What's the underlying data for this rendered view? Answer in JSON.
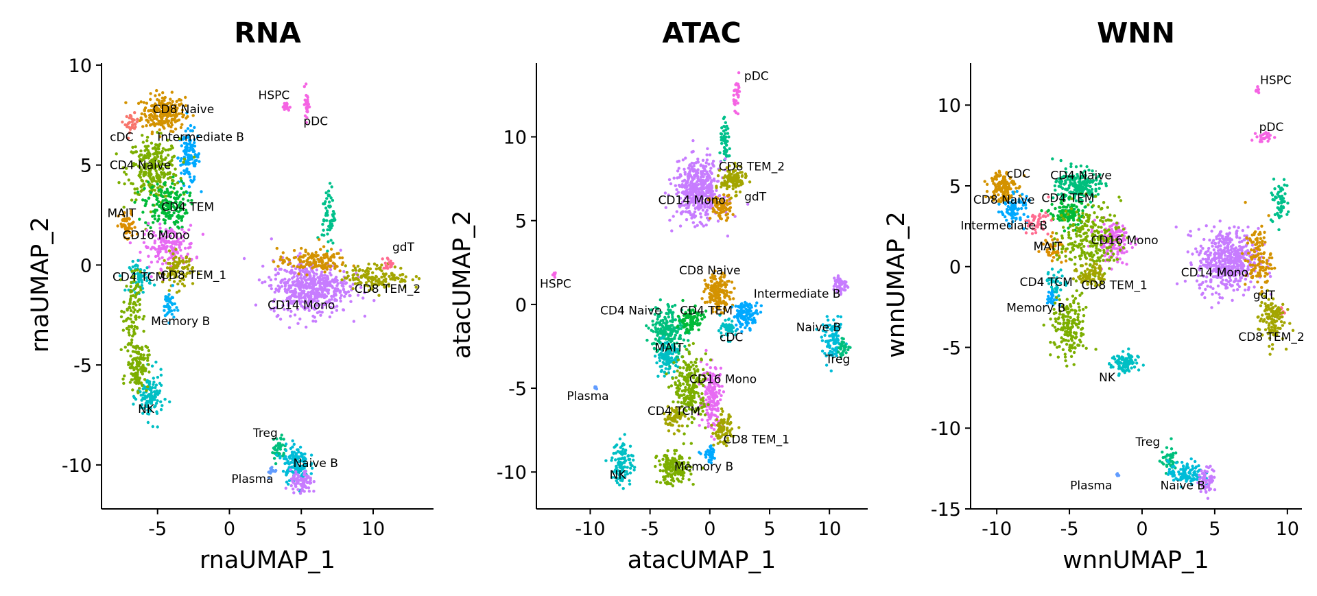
{
  "chart_data": [
    {
      "type": "scatter",
      "title": "RNA",
      "xlabel": "rnaUMAP_1",
      "ylabel": "rnaUMAP_2",
      "xlim": [
        -8.9,
        14.2
      ],
      "ylim": [
        -12.2,
        10.1
      ],
      "xticks": [
        -5,
        0,
        5,
        10
      ],
      "xtick_labels": [
        "-5",
        "0",
        "5",
        "10"
      ],
      "yticks": [
        10,
        5,
        0,
        -5,
        -10
      ],
      "ytick_labels": [
        "10",
        "5",
        "0",
        "-5",
        "-10"
      ],
      "grid": false,
      "legend": "none",
      "clusters": [
        {
          "label": "CD8 Naive",
          "color": "#D39200",
          "x": -4.6,
          "y": 7.6,
          "sx": 1.0,
          "sy": 0.6,
          "n": 240,
          "lx": -3.2,
          "ly": 7.6
        },
        {
          "label": "cDC",
          "color": "#F8766D",
          "x": -6.8,
          "y": 7.1,
          "sx": 0.3,
          "sy": 0.3,
          "n": 30,
          "lx": -7.5,
          "ly": 6.2
        },
        {
          "label": "Intermediate B",
          "color": "#00A9FF",
          "x": -2.8,
          "y": 5.4,
          "sx": 0.5,
          "sy": 0.9,
          "n": 120,
          "lx": -2.0,
          "ly": 6.2
        },
        {
          "label": "CD4 Naive",
          "color": "#7CAE00",
          "x": -5.3,
          "y": 4.8,
          "sx": 1.2,
          "sy": 1.0,
          "n": 280,
          "lx": -6.2,
          "ly": 4.8
        },
        {
          "label": "CD4 TEM",
          "color": "#00BA38",
          "x": -4.4,
          "y": 3.0,
          "sx": 1.0,
          "sy": 0.8,
          "n": 180,
          "lx": -2.9,
          "ly": 2.7
        },
        {
          "label": "MAIT",
          "color": "#DB8E00",
          "x": -7.1,
          "y": 1.9,
          "sx": 0.4,
          "sy": 0.5,
          "n": 50,
          "lx": -7.5,
          "ly": 2.4
        },
        {
          "label": "CD16 Mono",
          "color": "#E76BF3",
          "x": -4.2,
          "y": 0.9,
          "sx": 1.2,
          "sy": 0.7,
          "n": 160,
          "lx": -5.1,
          "ly": 1.3
        },
        {
          "label": "CD4 TCM",
          "color": "#00BFC4",
          "x": -6.2,
          "y": -0.6,
          "sx": 0.5,
          "sy": 0.5,
          "n": 50,
          "lx": -6.3,
          "ly": -0.8
        },
        {
          "label": "CD8 TEM_1",
          "color": "#A3A500",
          "x": -3.6,
          "y": -0.3,
          "sx": 0.7,
          "sy": 0.6,
          "n": 90,
          "lx": -2.5,
          "ly": -0.7
        },
        {
          "label": "Memory B",
          "color": "#00B0F6",
          "x": -4.2,
          "y": -2.0,
          "sx": 0.3,
          "sy": 0.5,
          "n": 40,
          "lx": -3.4,
          "ly": -3.0
        },
        {
          "label": "NK",
          "color": "#00BFC4",
          "x": -5.5,
          "y": -6.6,
          "sx": 0.6,
          "sy": 0.8,
          "n": 120,
          "lx": -5.8,
          "ly": -7.4
        },
        {
          "label": "",
          "color": "#7CAE00",
          "x": -6.4,
          "y": -5.0,
          "sx": 0.5,
          "sy": 0.8,
          "n": 130
        },
        {
          "label": "",
          "color": "#7CAE00",
          "x": -6.8,
          "y": -2.3,
          "sx": 0.4,
          "sy": 1.3,
          "n": 90
        },
        {
          "label": "HSPC",
          "color": "#F564E3",
          "x": 3.9,
          "y": 7.9,
          "sx": 0.2,
          "sy": 0.15,
          "n": 16,
          "lx": 3.1,
          "ly": 8.3
        },
        {
          "label": "pDC",
          "color": "#F564E3",
          "x": 5.4,
          "y": 8.1,
          "sx": 0.1,
          "sy": 0.6,
          "n": 30,
          "lx": 6.0,
          "ly": 7.0
        },
        {
          "label": "",
          "color": "#00C08B",
          "x": 6.9,
          "y": 2.5,
          "sx": 0.3,
          "sy": 1.0,
          "n": 60
        },
        {
          "label": "CD14 Mono",
          "color": "#C77CFF",
          "x": 5.6,
          "y": -1.1,
          "sx": 1.8,
          "sy": 0.9,
          "n": 520,
          "lx": 5.0,
          "ly": -2.2
        },
        {
          "label": "",
          "color": "#D39200",
          "x": 5.8,
          "y": 0.2,
          "sx": 1.6,
          "sy": 0.4,
          "n": 140
        },
        {
          "label": "CD8 TEM_2",
          "color": "#A3A500",
          "x": 10.3,
          "y": -0.6,
          "sx": 1.5,
          "sy": 0.4,
          "n": 140,
          "lx": 11.0,
          "ly": -1.4
        },
        {
          "label": "gdT",
          "color": "#FF6C90",
          "x": 11.1,
          "y": 0.1,
          "sx": 0.3,
          "sy": 0.2,
          "n": 20,
          "lx": 12.1,
          "ly": 0.7
        },
        {
          "label": "Treg",
          "color": "#00BF7D",
          "x": 3.4,
          "y": -9.2,
          "sx": 0.3,
          "sy": 0.5,
          "n": 40,
          "lx": 2.5,
          "ly": -8.6
        },
        {
          "label": "Naive B",
          "color": "#00BCD8",
          "x": 4.6,
          "y": -9.9,
          "sx": 0.6,
          "sy": 0.6,
          "n": 140,
          "lx": 6.0,
          "ly": -10.1
        },
        {
          "label": "",
          "color": "#C77CFF",
          "x": 5.0,
          "y": -10.9,
          "sx": 0.5,
          "sy": 0.4,
          "n": 80
        },
        {
          "label": "Plasma",
          "color": "#619CFF",
          "x": 3.0,
          "y": -10.3,
          "sx": 0.25,
          "sy": 0.2,
          "n": 12,
          "lx": 1.6,
          "ly": -10.9
        }
      ]
    },
    {
      "type": "scatter",
      "title": "ATAC",
      "xlabel": "atacUMAP_1",
      "ylabel": "atacUMAP_2",
      "xlim": [
        -14.5,
        13.2
      ],
      "ylim": [
        -12.2,
        14.4
      ],
      "xticks": [
        -10,
        -5,
        0,
        5,
        10
      ],
      "xtick_labels": [
        "-10",
        "-5",
        "0",
        "5",
        "10"
      ],
      "yticks": [
        10,
        5,
        0,
        -5,
        -10
      ],
      "ytick_labels": [
        "10",
        "5",
        "0",
        "-5",
        "-10"
      ],
      "grid": false,
      "legend": "none",
      "clusters": [
        {
          "label": "pDC",
          "color": "#F564E3",
          "x": 2.3,
          "y": 12.6,
          "sx": 0.2,
          "sy": 0.6,
          "n": 30,
          "lx": 3.9,
          "ly": 13.4
        },
        {
          "label": "",
          "color": "#00C08B",
          "x": 1.3,
          "y": 9.6,
          "sx": 0.3,
          "sy": 0.8,
          "n": 50
        },
        {
          "label": "CD14 Mono",
          "color": "#C77CFF",
          "x": -1.0,
          "y": 6.8,
          "sx": 1.3,
          "sy": 1.2,
          "n": 460,
          "lx": -1.5,
          "ly": 6.0
        },
        {
          "label": "CD8 TEM_2",
          "color": "#A3A500",
          "x": 2.0,
          "y": 7.4,
          "sx": 0.7,
          "sy": 0.5,
          "n": 120,
          "lx": 3.5,
          "ly": 8.0
        },
        {
          "label": "gdT",
          "color": "#D39200",
          "x": 0.9,
          "y": 5.8,
          "sx": 0.6,
          "sy": 0.5,
          "n": 80,
          "lx": 3.8,
          "ly": 6.2
        },
        {
          "label": "HSPC",
          "color": "#F564E3",
          "x": -13.0,
          "y": 1.8,
          "sx": 0.1,
          "sy": 0.1,
          "n": 8,
          "lx": -12.9,
          "ly": 1.0
        },
        {
          "label": "CD8 Naive",
          "color": "#D39200",
          "x": 0.7,
          "y": 0.7,
          "sx": 0.7,
          "sy": 0.7,
          "n": 160,
          "lx": 0.0,
          "ly": 1.8
        },
        {
          "label": "Intermediate B",
          "color": "#00A9FF",
          "x": 3.0,
          "y": -0.6,
          "sx": 0.7,
          "sy": 0.5,
          "n": 110,
          "lx": 7.3,
          "ly": 0.4
        },
        {
          "label": "CD4 Naive",
          "color": "#00BF7D",
          "x": -3.5,
          "y": -1.5,
          "sx": 1.0,
          "sy": 1.0,
          "n": 200,
          "lx": -6.6,
          "ly": -0.6
        },
        {
          "label": "CD4 TEM",
          "color": "#00BA38",
          "x": -1.6,
          "y": -0.9,
          "sx": 0.7,
          "sy": 0.5,
          "n": 90,
          "lx": -0.3,
          "ly": -0.6
        },
        {
          "label": "cDC",
          "color": "#00BFC4",
          "x": 1.4,
          "y": -1.5,
          "sx": 0.5,
          "sy": 0.4,
          "n": 50,
          "lx": 1.8,
          "ly": -2.2
        },
        {
          "label": "MAIT",
          "color": "#00BFC4",
          "x": -3.6,
          "y": -3.2,
          "sx": 0.6,
          "sy": 0.6,
          "n": 100,
          "lx": -3.4,
          "ly": -2.8
        },
        {
          "label": "CD16 Mono",
          "color": "#E76BF3",
          "x": 0.2,
          "y": -5.5,
          "sx": 0.6,
          "sy": 1.3,
          "n": 170,
          "lx": 1.1,
          "ly": -4.7
        },
        {
          "label": "",
          "color": "#7CAE00",
          "x": -1.6,
          "y": -5.0,
          "sx": 0.9,
          "sy": 1.3,
          "n": 220
        },
        {
          "label": "CD4 TCM",
          "color": "#A3A500",
          "x": -3.0,
          "y": -6.8,
          "sx": 0.6,
          "sy": 0.5,
          "n": 60,
          "lx": -3.0,
          "ly": -6.6
        },
        {
          "label": "CD8 TEM_1",
          "color": "#A3A500",
          "x": 1.1,
          "y": -7.5,
          "sx": 0.5,
          "sy": 0.6,
          "n": 90,
          "lx": 3.9,
          "ly": -8.3
        },
        {
          "label": "",
          "color": "#00A9FF",
          "x": 0.0,
          "y": -9.0,
          "sx": 0.4,
          "sy": 0.3,
          "n": 35
        },
        {
          "label": "Memory B",
          "color": "#7CAE00",
          "x": -3.0,
          "y": -9.8,
          "sx": 0.9,
          "sy": 0.6,
          "n": 170,
          "lx": -0.5,
          "ly": -9.9
        },
        {
          "label": "NK",
          "color": "#00BFC4",
          "x": -7.3,
          "y": -9.5,
          "sx": 0.6,
          "sy": 0.9,
          "n": 110,
          "lx": -7.7,
          "ly": -10.4
        },
        {
          "label": "Plasma",
          "color": "#619CFF",
          "x": -9.5,
          "y": -4.9,
          "sx": 0.1,
          "sy": 0.1,
          "n": 6,
          "lx": -10.2,
          "ly": -5.7
        },
        {
          "label": "",
          "color": "#C77CFF",
          "x": 10.9,
          "y": 1.2,
          "sx": 0.4,
          "sy": 0.4,
          "n": 50
        },
        {
          "label": "Naive B",
          "color": "#00BCD8",
          "x": 10.3,
          "y": -2.2,
          "sx": 0.6,
          "sy": 0.8,
          "n": 90,
          "lx": 9.1,
          "ly": -1.6
        },
        {
          "label": "Treg",
          "color": "#00BF7D",
          "x": 11.2,
          "y": -2.6,
          "sx": 0.4,
          "sy": 0.3,
          "n": 30,
          "lx": 10.7,
          "ly": -3.5
        }
      ]
    },
    {
      "type": "scatter",
      "title": "WNN",
      "xlabel": "wnnUMAP_1",
      "ylabel": "wnnUMAP_2",
      "xlim": [
        -11.8,
        11.0
      ],
      "ylim": [
        -15.0,
        12.6
      ],
      "xticks": [
        -10,
        -5,
        0,
        5,
        10
      ],
      "xtick_labels": [
        "-10",
        "-5",
        "0",
        "5",
        "10"
      ],
      "yticks": [
        10,
        5,
        0,
        -5,
        -10,
        -15
      ],
      "ytick_labels": [
        "10",
        "5",
        "0",
        "-5",
        "-10",
        "-15"
      ],
      "grid": false,
      "legend": "none",
      "clusters": [
        {
          "label": "HSPC",
          "color": "#F564E3",
          "x": 7.9,
          "y": 11.0,
          "sx": 0.1,
          "sy": 0.2,
          "n": 8,
          "lx": 9.2,
          "ly": 11.3
        },
        {
          "label": "pDC",
          "color": "#F564E3",
          "x": 8.5,
          "y": 8.0,
          "sx": 0.4,
          "sy": 0.25,
          "n": 25,
          "lx": 8.9,
          "ly": 8.4
        },
        {
          "label": "",
          "color": "#00C08B",
          "x": 9.4,
          "y": 4.0,
          "sx": 0.4,
          "sy": 0.8,
          "n": 60
        },
        {
          "label": "cDC",
          "color": "#D39200",
          "x": -9.6,
          "y": 5.0,
          "sx": 0.6,
          "sy": 0.7,
          "n": 130,
          "lx": -8.5,
          "ly": 5.5
        },
        {
          "label": "CD4 Naive",
          "color": "#00BF7D",
          "x": -4.4,
          "y": 5.0,
          "sx": 1.0,
          "sy": 0.7,
          "n": 190,
          "lx": -4.2,
          "ly": 5.4
        },
        {
          "label": "CD8 Naive",
          "color": "#00A9FF",
          "x": -8.8,
          "y": 3.6,
          "sx": 0.6,
          "sy": 0.6,
          "n": 80,
          "lx": -9.5,
          "ly": 3.9
        },
        {
          "label": "CD4 TEM",
          "color": "#00BA38",
          "x": -5.1,
          "y": 3.3,
          "sx": 0.8,
          "sy": 0.6,
          "n": 110,
          "lx": -5.1,
          "ly": 4.0
        },
        {
          "label": "Intermediate B",
          "color": "#FF6C90",
          "x": -7.3,
          "y": 2.7,
          "sx": 0.6,
          "sy": 0.5,
          "n": 40,
          "lx": -9.5,
          "ly": 2.3
        },
        {
          "label": "MAIT",
          "color": "#DB8E00",
          "x": -6.1,
          "y": 1.2,
          "sx": 0.5,
          "sy": 0.5,
          "n": 40,
          "lx": -6.5,
          "ly": 1.0
        },
        {
          "label": "CD16 Mono",
          "color": "#E76BF3",
          "x": -2.0,
          "y": 1.5,
          "sx": 0.8,
          "sy": 0.8,
          "n": 150,
          "lx": -1.2,
          "ly": 1.4
        },
        {
          "label": "",
          "color": "#7CAE00",
          "x": -3.6,
          "y": 1.8,
          "sx": 1.4,
          "sy": 1.4,
          "n": 240
        },
        {
          "label": "CD8 TEM_1",
          "color": "#A3A500",
          "x": -3.5,
          "y": -0.5,
          "sx": 0.6,
          "sy": 0.5,
          "n": 80,
          "lx": -1.9,
          "ly": -1.4
        },
        {
          "label": "CD4 TCM",
          "color": "#00BFC4",
          "x": -5.9,
          "y": -1.0,
          "sx": 0.5,
          "sy": 0.5,
          "n": 40,
          "lx": -6.6,
          "ly": -1.2
        },
        {
          "label": "Memory B",
          "color": "#00A9FF",
          "x": -6.2,
          "y": -2.0,
          "sx": 0.3,
          "sy": 0.3,
          "n": 25,
          "lx": -7.3,
          "ly": -2.8
        },
        {
          "label": "",
          "color": "#7CAE00",
          "x": -5.0,
          "y": -3.8,
          "sx": 0.8,
          "sy": 1.3,
          "n": 170
        },
        {
          "label": "NK",
          "color": "#00BFC4",
          "x": -1.2,
          "y": -6.0,
          "sx": 0.6,
          "sy": 0.5,
          "n": 90,
          "lx": -2.4,
          "ly": -7.1
        },
        {
          "label": "CD14 Mono",
          "color": "#C77CFF",
          "x": 5.9,
          "y": 0.4,
          "sx": 1.4,
          "sy": 1.3,
          "n": 480,
          "lx": 5.0,
          "ly": -0.6
        },
        {
          "label": "",
          "color": "#D39200",
          "x": 8.0,
          "y": 0.5,
          "sx": 0.6,
          "sy": 1.3,
          "n": 120
        },
        {
          "label": "gdT",
          "color": "#FF6C90",
          "x": 9.6,
          "y": -2.8,
          "sx": 0.15,
          "sy": 0.2,
          "n": 10,
          "lx": 8.4,
          "ly": -2.0
        },
        {
          "label": "CD8 TEM_2",
          "color": "#A3A500",
          "x": 8.9,
          "y": -3.2,
          "sx": 0.6,
          "sy": 1.0,
          "n": 120,
          "lx": 8.9,
          "ly": -4.6
        },
        {
          "label": "Treg",
          "color": "#00BF7D",
          "x": 1.9,
          "y": -12.0,
          "sx": 0.4,
          "sy": 0.5,
          "n": 40,
          "lx": 0.4,
          "ly": -11.1
        },
        {
          "label": "Naive B",
          "color": "#00BCD8",
          "x": 3.0,
          "y": -12.8,
          "sx": 0.8,
          "sy": 0.5,
          "n": 110,
          "lx": 2.8,
          "ly": -13.8
        },
        {
          "label": "",
          "color": "#C77CFF",
          "x": 4.5,
          "y": -13.2,
          "sx": 0.4,
          "sy": 0.5,
          "n": 60
        },
        {
          "label": "Plasma",
          "color": "#619CFF",
          "x": -1.7,
          "y": -12.9,
          "sx": 0.08,
          "sy": 0.08,
          "n": 5,
          "lx": -3.5,
          "ly": -13.8
        }
      ]
    }
  ]
}
